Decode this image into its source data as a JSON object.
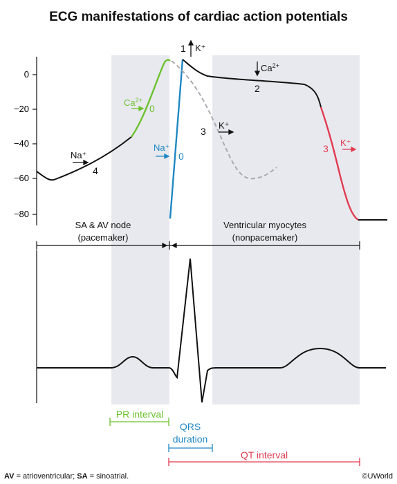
{
  "title": "ECG manifestations of cardiac action potentials",
  "y_ticks": [
    "0",
    "−20",
    "−40",
    "−60",
    "−80"
  ],
  "regions": {
    "pacemaker": {
      "line1": "SA & AV node",
      "line2": "(pacemaker)"
    },
    "ventricular": {
      "line1": "Ventricular myocytes",
      "line2": "(nonpacemaker)"
    }
  },
  "phases": {
    "pacemaker_phase4": "4",
    "pacemaker_phase0": "0",
    "ventricular_phase0": "0",
    "ventricular_phase1": "1",
    "ventricular_phase2": "2",
    "ventricular_phase3_dashed": "3",
    "ventricular_phase3": "3"
  },
  "ions": {
    "na_pacemaker": "Na⁺",
    "ca_pacemaker": "Ca",
    "ca_pacemaker_sup": "2+",
    "na_ventricular": "Na⁺",
    "k_phase1": "K⁺",
    "ca_phase2": "Ca",
    "ca_phase2_sup": "2+",
    "k_phase3_dashed": "K⁺",
    "k_phase3": "K⁺"
  },
  "intervals": {
    "pr": "PR interval",
    "qrs_line1": "QRS",
    "qrs_line2": "duration",
    "qt": "QT interval"
  },
  "footnote": {
    "av_abbr": "AV",
    "av_text": " = atrioventricular; ",
    "sa_abbr": "SA",
    "sa_text": " = sinoatrial."
  },
  "copyright": "©UWorld",
  "colors": {
    "shade": "#e8e9ef",
    "pacemaker_phase0": "#6cc12e",
    "ventricular_phase0": "#1f87c3",
    "ventricular_phase3": "#e23a4f",
    "dashed_curve": "#a9a9b2",
    "pr_interval": "#6cc12e",
    "qrs": "#1f87c3",
    "qt": "#e23a4f"
  }
}
